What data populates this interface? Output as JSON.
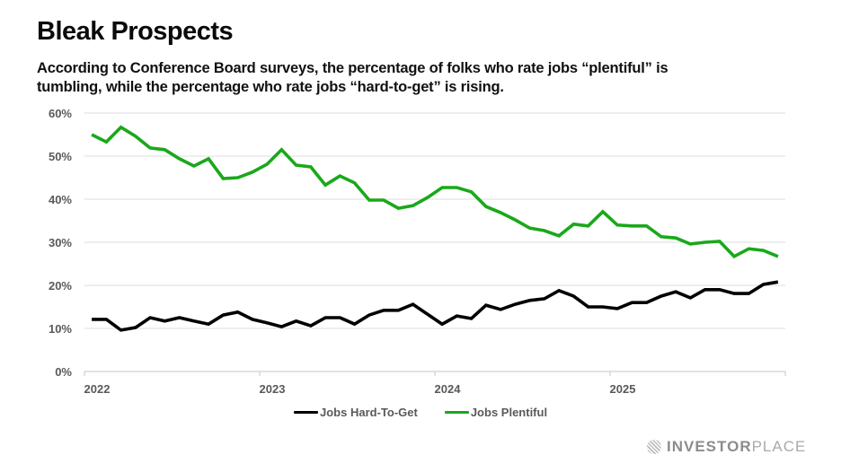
{
  "header": {
    "title": "Bleak Prospects",
    "subtitle_line1": "According to Conference Board surveys, the percentage of folks who rate jobs “plentiful” is",
    "subtitle_line2": "tumbling, while the percentage who rate jobs “hard-to-get” is rising."
  },
  "branding": {
    "icon": "globe-icon",
    "name_bold": "INVESTOR",
    "name_light": "PLACE"
  },
  "chart_data": {
    "type": "line",
    "title": "Bleak Prospects",
    "xlabel": "",
    "ylabel": "",
    "x_range": [
      "2022-01",
      "2026-01"
    ],
    "x_ticks": [
      "2022",
      "2023",
      "2024",
      "2025"
    ],
    "ylim": [
      0,
      60
    ],
    "y_ticks": [
      0,
      10,
      20,
      30,
      40,
      50,
      60
    ],
    "y_tick_labels": [
      "0%",
      "10%",
      "20%",
      "30%",
      "40%",
      "50%",
      "60%"
    ],
    "grid": "horizontal",
    "legend_position": "bottom-center",
    "x": [
      "2022-01",
      "2022-02",
      "2022-03",
      "2022-04",
      "2022-05",
      "2022-06",
      "2022-07",
      "2022-08",
      "2022-09",
      "2022-10",
      "2022-11",
      "2022-12",
      "2023-01",
      "2023-02",
      "2023-03",
      "2023-04",
      "2023-05",
      "2023-06",
      "2023-07",
      "2023-08",
      "2023-09",
      "2023-10",
      "2023-11",
      "2023-12",
      "2024-01",
      "2024-02",
      "2024-03",
      "2024-04",
      "2024-05",
      "2024-06",
      "2024-07",
      "2024-08",
      "2024-09",
      "2024-10",
      "2024-11",
      "2024-12",
      "2025-01",
      "2025-02",
      "2025-03",
      "2025-04",
      "2025-05",
      "2025-06",
      "2025-07",
      "2025-08",
      "2025-09",
      "2025-10",
      "2025-11",
      "2025-12"
    ],
    "series": [
      {
        "name": "Jobs Hard-To-Get",
        "color": "#000000",
        "values": [
          12.1,
          12.1,
          9.6,
          10.2,
          12.5,
          11.7,
          12.5,
          11.7,
          11.0,
          13.1,
          13.8,
          12.1,
          11.3,
          10.4,
          11.7,
          10.6,
          12.5,
          12.5,
          11.0,
          13.1,
          14.2,
          14.2,
          15.6,
          13.3,
          11.0,
          12.9,
          12.3,
          15.4,
          14.4,
          15.6,
          16.5,
          16.9,
          18.8,
          17.5,
          15.0,
          15.0,
          14.6,
          16.0,
          16.0,
          17.5,
          18.5,
          17.1,
          19.0,
          19.0,
          18.1,
          18.1,
          20.2,
          20.8
        ]
      },
      {
        "name": "Jobs Plentiful",
        "color": "#1aa81a",
        "values": [
          55.0,
          53.3,
          56.7,
          54.6,
          51.9,
          51.5,
          49.4,
          47.7,
          49.4,
          44.8,
          45.0,
          46.3,
          48.1,
          51.5,
          47.9,
          47.5,
          43.3,
          45.4,
          43.8,
          39.8,
          39.8,
          37.9,
          38.5,
          40.4,
          42.7,
          42.7,
          41.7,
          38.3,
          36.9,
          35.2,
          33.3,
          32.7,
          31.5,
          34.2,
          33.8,
          37.1,
          34.0,
          33.8,
          33.8,
          31.3,
          31.0,
          29.6,
          30.0,
          30.2,
          26.7,
          28.5,
          28.1,
          26.7
        ]
      }
    ]
  }
}
